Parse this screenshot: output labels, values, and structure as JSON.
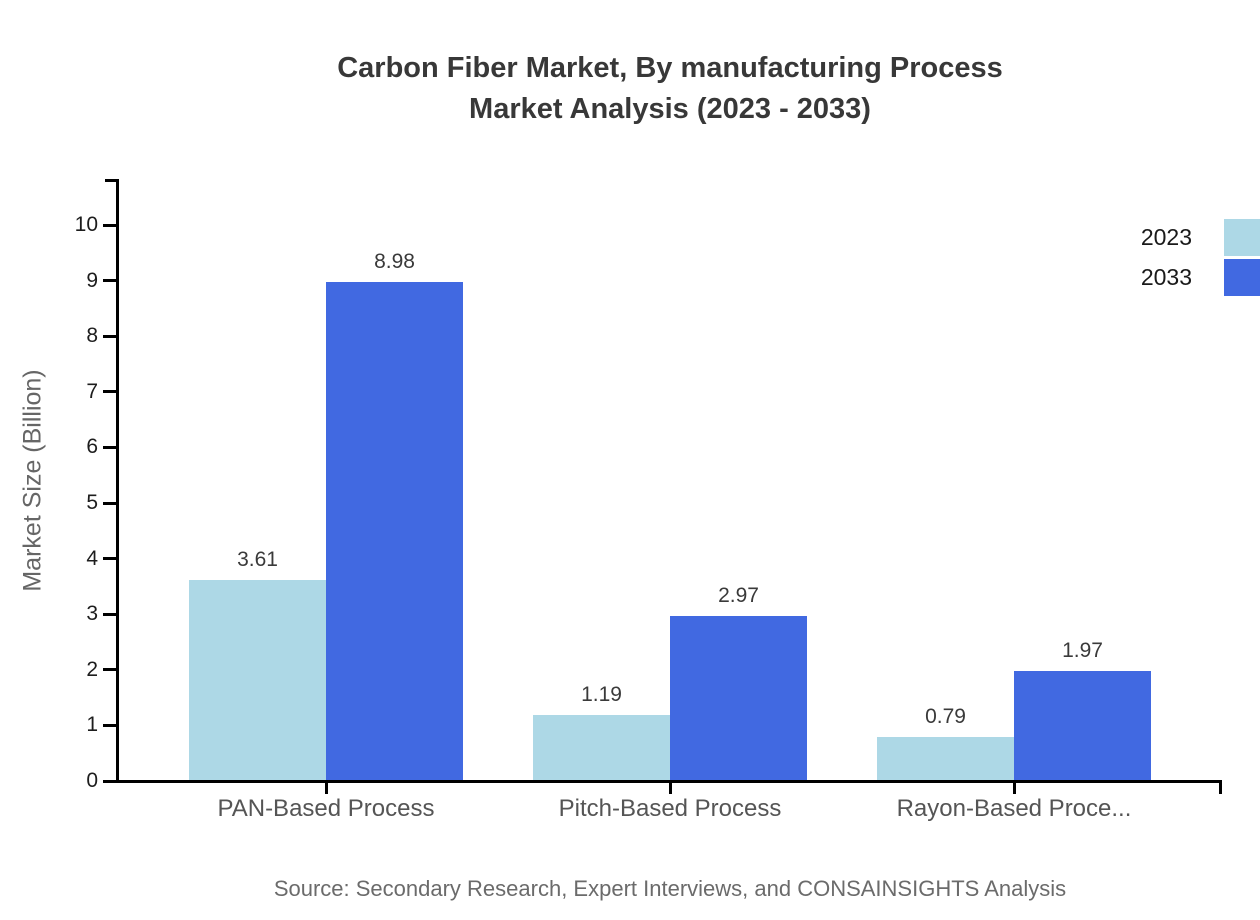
{
  "title": {
    "line1": "Carbon Fiber Market, By manufacturing Process",
    "line2": "Market Analysis (2023 - 2033)"
  },
  "source": "Source: Secondary Research, Expert Interviews, and CONSAINSIGHTS Analysis",
  "colors": {
    "series_2023": "#ADD8E6",
    "series_2033": "#4169E1",
    "axis": "#000000",
    "title_text": "#383838",
    "category_text": "#555555",
    "muted_text": "#6B6B6B"
  },
  "chart_data": {
    "type": "bar",
    "title": "Carbon Fiber Market, By manufacturing Process Market Analysis (2023 - 2033)",
    "categories": [
      "PAN-Based Process",
      "Pitch-Based Process",
      "Rayon-Based Proce..."
    ],
    "series": [
      {
        "name": "2023",
        "color": "#ADD8E6",
        "values": [
          3.61,
          1.19,
          0.79
        ]
      },
      {
        "name": "2033",
        "color": "#4169E1",
        "values": [
          8.98,
          2.97,
          1.97
        ]
      }
    ],
    "xlabel": "",
    "ylabel": "Market Size (Billion)",
    "ylim": [
      0,
      10
    ],
    "yticks": [
      0,
      1,
      2,
      3,
      4,
      5,
      6,
      7,
      8,
      9,
      10
    ],
    "grid": false,
    "legend_position": "top-right",
    "value_labels": true,
    "value_label_format": "2dp"
  }
}
